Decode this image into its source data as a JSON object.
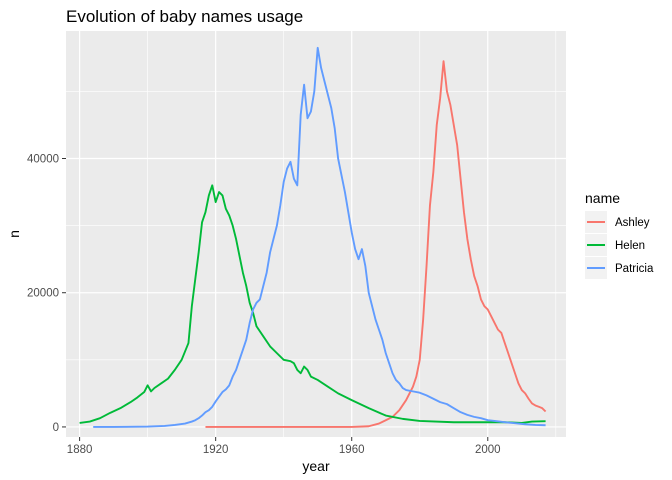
{
  "chart_data": {
    "type": "line",
    "title": "Evolution of baby names usage",
    "xlabel": "year",
    "ylabel": "n",
    "xlim": [
      1876,
      2023
    ],
    "ylim": [
      -1500,
      59000
    ],
    "x_ticks": [
      1880,
      1920,
      1960,
      2000
    ],
    "y_ticks": [
      0,
      20000,
      40000
    ],
    "y_tick_labels": [
      "0",
      "20000",
      "40000"
    ],
    "grid": true,
    "legend": {
      "title": "name",
      "placement": "right"
    },
    "series": [
      {
        "name": "Ashley",
        "color": "#f8766d",
        "points": [
          [
            1917,
            0
          ],
          [
            1930,
            0
          ],
          [
            1945,
            0
          ],
          [
            1960,
            0
          ],
          [
            1965,
            100
          ],
          [
            1968,
            500
          ],
          [
            1970,
            1000
          ],
          [
            1972,
            1500
          ],
          [
            1974,
            2500
          ],
          [
            1976,
            4000
          ],
          [
            1978,
            6000
          ],
          [
            1979,
            7500
          ],
          [
            1980,
            10000
          ],
          [
            1981,
            16000
          ],
          [
            1982,
            24000
          ],
          [
            1983,
            33000
          ],
          [
            1984,
            38000
          ],
          [
            1985,
            45000
          ],
          [
            1986,
            49000
          ],
          [
            1987,
            54500
          ],
          [
            1988,
            50000
          ],
          [
            1989,
            48000
          ],
          [
            1990,
            45000
          ],
          [
            1991,
            42000
          ],
          [
            1992,
            37000
          ],
          [
            1993,
            32000
          ],
          [
            1994,
            28000
          ],
          [
            1995,
            25000
          ],
          [
            1996,
            22500
          ],
          [
            1997,
            21000
          ],
          [
            1998,
            19000
          ],
          [
            1999,
            18000
          ],
          [
            2000,
            17500
          ],
          [
            2001,
            16500
          ],
          [
            2002,
            15500
          ],
          [
            2003,
            14500
          ],
          [
            2004,
            14000
          ],
          [
            2005,
            12500
          ],
          [
            2006,
            11000
          ],
          [
            2007,
            9500
          ],
          [
            2008,
            8000
          ],
          [
            2009,
            6500
          ],
          [
            2010,
            5500
          ],
          [
            2011,
            5000
          ],
          [
            2012,
            4200
          ],
          [
            2013,
            3500
          ],
          [
            2014,
            3200
          ],
          [
            2015,
            3000
          ],
          [
            2016,
            2800
          ],
          [
            2017,
            2300
          ]
        ]
      },
      {
        "name": "Helen",
        "color": "#00ba38",
        "points": [
          [
            1880,
            600
          ],
          [
            1883,
            800
          ],
          [
            1886,
            1300
          ],
          [
            1889,
            2100
          ],
          [
            1892,
            2800
          ],
          [
            1895,
            3700
          ],
          [
            1897,
            4400
          ],
          [
            1899,
            5200
          ],
          [
            1900,
            6200
          ],
          [
            1901,
            5300
          ],
          [
            1902,
            5800
          ],
          [
            1904,
            6500
          ],
          [
            1906,
            7200
          ],
          [
            1908,
            8500
          ],
          [
            1910,
            10000
          ],
          [
            1912,
            12500
          ],
          [
            1913,
            18000
          ],
          [
            1914,
            22000
          ],
          [
            1915,
            26000
          ],
          [
            1916,
            30500
          ],
          [
            1917,
            32000
          ],
          [
            1918,
            34500
          ],
          [
            1919,
            36000
          ],
          [
            1920,
            33500
          ],
          [
            1921,
            35000
          ],
          [
            1922,
            34500
          ],
          [
            1923,
            32500
          ],
          [
            1924,
            31500
          ],
          [
            1925,
            30000
          ],
          [
            1926,
            28000
          ],
          [
            1927,
            25500
          ],
          [
            1928,
            23000
          ],
          [
            1929,
            21000
          ],
          [
            1930,
            18500
          ],
          [
            1931,
            17000
          ],
          [
            1932,
            15000
          ],
          [
            1934,
            13500
          ],
          [
            1936,
            12000
          ],
          [
            1938,
            11000
          ],
          [
            1940,
            10000
          ],
          [
            1942,
            9800
          ],
          [
            1943,
            9500
          ],
          [
            1944,
            8500
          ],
          [
            1945,
            8000
          ],
          [
            1946,
            9000
          ],
          [
            1947,
            8500
          ],
          [
            1948,
            7500
          ],
          [
            1950,
            7000
          ],
          [
            1953,
            6000
          ],
          [
            1956,
            5000
          ],
          [
            1960,
            4000
          ],
          [
            1965,
            2800
          ],
          [
            1970,
            1700
          ],
          [
            1975,
            1200
          ],
          [
            1980,
            900
          ],
          [
            1990,
            700
          ],
          [
            2000,
            700
          ],
          [
            2005,
            700
          ],
          [
            2010,
            600
          ],
          [
            2013,
            800
          ],
          [
            2017,
            850
          ]
        ]
      },
      {
        "name": "Patricia",
        "color": "#619cff",
        "points": [
          [
            1884,
            0
          ],
          [
            1890,
            0
          ],
          [
            1900,
            50
          ],
          [
            1905,
            150
          ],
          [
            1908,
            300
          ],
          [
            1911,
            500
          ],
          [
            1913,
            800
          ],
          [
            1914,
            1000
          ],
          [
            1915,
            1300
          ],
          [
            1916,
            1700
          ],
          [
            1917,
            2200
          ],
          [
            1918,
            2500
          ],
          [
            1919,
            3000
          ],
          [
            1920,
            3800
          ],
          [
            1921,
            4500
          ],
          [
            1922,
            5200
          ],
          [
            1923,
            5600
          ],
          [
            1924,
            6200
          ],
          [
            1925,
            7500
          ],
          [
            1926,
            8500
          ],
          [
            1927,
            10000
          ],
          [
            1928,
            11500
          ],
          [
            1929,
            13000
          ],
          [
            1930,
            15500
          ],
          [
            1931,
            17500
          ],
          [
            1932,
            18500
          ],
          [
            1933,
            19000
          ],
          [
            1934,
            21000
          ],
          [
            1935,
            23000
          ],
          [
            1936,
            26000
          ],
          [
            1937,
            28000
          ],
          [
            1938,
            30000
          ],
          [
            1939,
            33000
          ],
          [
            1940,
            36500
          ],
          [
            1941,
            38500
          ],
          [
            1942,
            39500
          ],
          [
            1943,
            37000
          ],
          [
            1944,
            36000
          ],
          [
            1945,
            46500
          ],
          [
            1946,
            51000
          ],
          [
            1947,
            46000
          ],
          [
            1948,
            47000
          ],
          [
            1949,
            50000
          ],
          [
            1950,
            56500
          ],
          [
            1951,
            53500
          ],
          [
            1952,
            51500
          ],
          [
            1953,
            49500
          ],
          [
            1954,
            47500
          ],
          [
            1955,
            44500
          ],
          [
            1956,
            40000
          ],
          [
            1957,
            37500
          ],
          [
            1958,
            35000
          ],
          [
            1959,
            32000
          ],
          [
            1960,
            29000
          ],
          [
            1961,
            26500
          ],
          [
            1962,
            25000
          ],
          [
            1963,
            26500
          ],
          [
            1964,
            24000
          ],
          [
            1965,
            20000
          ],
          [
            1966,
            18000
          ],
          [
            1967,
            16000
          ],
          [
            1968,
            14500
          ],
          [
            1969,
            13000
          ],
          [
            1970,
            11000
          ],
          [
            1971,
            9500
          ],
          [
            1972,
            8000
          ],
          [
            1973,
            7000
          ],
          [
            1974,
            6500
          ],
          [
            1975,
            5800
          ],
          [
            1976,
            5500
          ],
          [
            1978,
            5300
          ],
          [
            1980,
            5100
          ],
          [
            1982,
            4700
          ],
          [
            1984,
            4200
          ],
          [
            1986,
            3700
          ],
          [
            1988,
            3400
          ],
          [
            1990,
            2800
          ],
          [
            1992,
            2200
          ],
          [
            1994,
            1800
          ],
          [
            1996,
            1500
          ],
          [
            1998,
            1300
          ],
          [
            2000,
            1000
          ],
          [
            2002,
            900
          ],
          [
            2005,
            700
          ],
          [
            2008,
            550
          ],
          [
            2011,
            400
          ],
          [
            2014,
            300
          ],
          [
            2017,
            250
          ]
        ]
      }
    ]
  }
}
